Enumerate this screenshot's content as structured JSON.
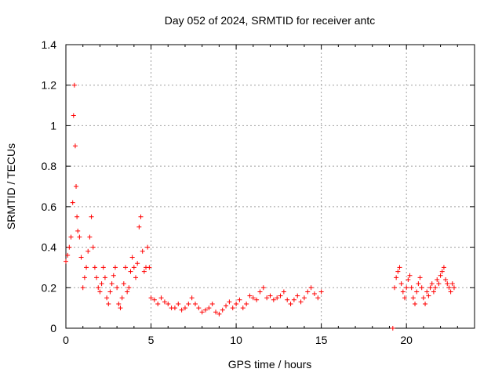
{
  "chart_data": {
    "type": "scatter",
    "title": "Day 052 of 2024, SRMTID for receiver antc",
    "xlabel": "GPS time / hours",
    "ylabel": "SRMTID / TECUs",
    "xlim": [
      0,
      24
    ],
    "ylim": [
      0,
      1.4
    ],
    "xticks": [
      0,
      5,
      10,
      15,
      20
    ],
    "xtick_labels": [
      "0",
      "5",
      "10",
      "15",
      "20"
    ],
    "yticks": [
      0,
      0.2,
      0.4,
      0.6,
      0.8,
      1.0,
      1.2,
      1.4
    ],
    "ytick_labels": [
      "0",
      "0.2",
      "0.4",
      "0.6",
      "0.8",
      "1",
      "1.2",
      "1.4"
    ],
    "grid": true,
    "marker": "+",
    "series": [
      {
        "name": "SRMTID",
        "color": "#ff0000",
        "x": [
          0.0,
          0.1,
          0.2,
          0.3,
          0.4,
          0.45,
          0.5,
          0.55,
          0.6,
          0.65,
          0.7,
          0.8,
          0.9,
          1.0,
          1.1,
          1.2,
          1.3,
          1.4,
          1.5,
          1.6,
          1.7,
          1.8,
          1.9,
          2.0,
          2.1,
          2.2,
          2.3,
          2.4,
          2.5,
          2.6,
          2.7,
          2.8,
          2.9,
          3.0,
          3.1,
          3.2,
          3.3,
          3.4,
          3.5,
          3.6,
          3.7,
          3.8,
          3.9,
          4.0,
          4.1,
          4.2,
          4.3,
          4.4,
          4.5,
          4.6,
          4.7,
          4.8,
          4.9,
          5.0,
          5.2,
          5.4,
          5.6,
          5.8,
          6.0,
          6.2,
          6.4,
          6.6,
          6.8,
          7.0,
          7.2,
          7.4,
          7.6,
          7.8,
          8.0,
          8.2,
          8.4,
          8.6,
          8.8,
          9.0,
          9.2,
          9.4,
          9.6,
          9.8,
          10.0,
          10.2,
          10.4,
          10.6,
          10.8,
          11.0,
          11.2,
          11.4,
          11.6,
          11.8,
          12.0,
          12.2,
          12.4,
          12.6,
          12.8,
          13.0,
          13.2,
          13.4,
          13.6,
          13.8,
          14.0,
          14.2,
          14.4,
          14.6,
          14.8,
          15.0,
          19.2,
          19.3,
          19.4,
          19.5,
          19.6,
          19.7,
          19.8,
          19.9,
          20.0,
          20.1,
          20.2,
          20.3,
          20.4,
          20.5,
          20.6,
          20.7,
          20.8,
          20.9,
          21.0,
          21.1,
          21.2,
          21.3,
          21.4,
          21.5,
          21.6,
          21.7,
          21.8,
          21.9,
          22.0,
          22.1,
          22.2,
          22.3,
          22.4,
          22.5,
          22.6,
          22.7,
          22.8
        ],
        "y": [
          0.33,
          0.36,
          0.4,
          0.45,
          0.62,
          1.05,
          1.2,
          0.9,
          0.7,
          0.55,
          0.48,
          0.45,
          0.35,
          0.2,
          0.25,
          0.3,
          0.38,
          0.45,
          0.55,
          0.4,
          0.3,
          0.25,
          0.2,
          0.18,
          0.22,
          0.3,
          0.25,
          0.15,
          0.12,
          0.18,
          0.22,
          0.26,
          0.3,
          0.2,
          0.12,
          0.1,
          0.15,
          0.22,
          0.3,
          0.18,
          0.2,
          0.28,
          0.35,
          0.3,
          0.25,
          0.32,
          0.5,
          0.55,
          0.38,
          0.28,
          0.3,
          0.4,
          0.3,
          0.15,
          0.14,
          0.12,
          0.15,
          0.13,
          0.12,
          0.1,
          0.1,
          0.12,
          0.09,
          0.1,
          0.12,
          0.15,
          0.12,
          0.1,
          0.08,
          0.09,
          0.1,
          0.12,
          0.08,
          0.07,
          0.09,
          0.11,
          0.13,
          0.1,
          0.12,
          0.14,
          0.1,
          0.12,
          0.16,
          0.15,
          0.14,
          0.18,
          0.2,
          0.15,
          0.16,
          0.14,
          0.15,
          0.16,
          0.18,
          0.14,
          0.12,
          0.14,
          0.16,
          0.13,
          0.15,
          0.18,
          0.2,
          0.17,
          0.15,
          0.18,
          0.0,
          0.2,
          0.25,
          0.28,
          0.3,
          0.22,
          0.18,
          0.15,
          0.2,
          0.24,
          0.26,
          0.2,
          0.15,
          0.12,
          0.18,
          0.22,
          0.25,
          0.2,
          0.15,
          0.12,
          0.18,
          0.16,
          0.2,
          0.22,
          0.18,
          0.2,
          0.24,
          0.22,
          0.26,
          0.28,
          0.3,
          0.24,
          0.22,
          0.2,
          0.18,
          0.22,
          0.2
        ]
      }
    ]
  }
}
